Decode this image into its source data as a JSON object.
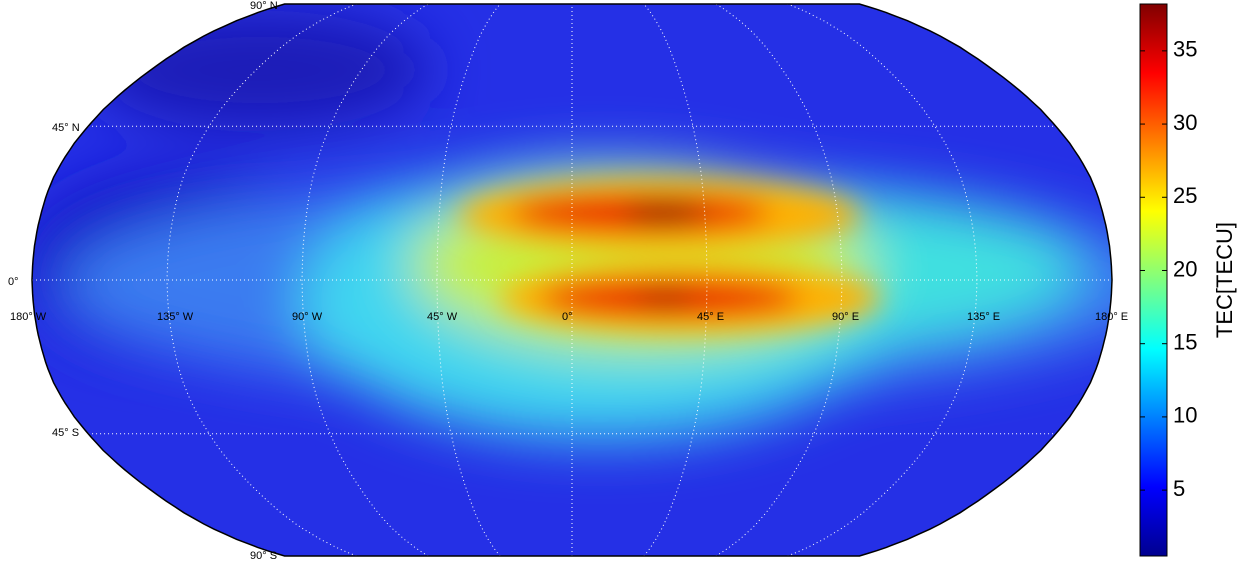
{
  "map": {
    "lat_labels": [
      "90° N",
      "45° N",
      "0°",
      "45° S",
      "90° S"
    ],
    "lon_labels": [
      "180° W",
      "135° W",
      "90° W",
      "45° W",
      "0°",
      "45° E",
      "90° E",
      "135° E",
      "180° E"
    ]
  },
  "colorbar": {
    "label": "TEC[TECU]",
    "lim": [
      0.5,
      38.2
    ],
    "ticks": [
      5,
      10,
      15,
      20,
      25,
      30,
      35
    ]
  }
}
